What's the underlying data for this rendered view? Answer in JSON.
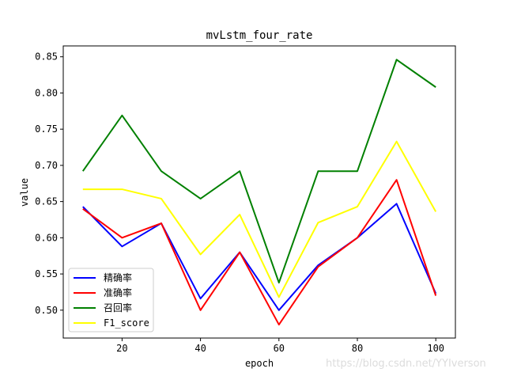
{
  "watermark": "https://blog.csdn.net/YYIverson",
  "chart_data": {
    "type": "line",
    "title": "mvLstm_four_rate",
    "xlabel": "epoch",
    "ylabel": "value",
    "x": [
      10,
      20,
      30,
      40,
      50,
      60,
      70,
      80,
      90,
      100
    ],
    "xlim": [
      5,
      105
    ],
    "ylim": [
      0.4615,
      0.865
    ],
    "xticks": [
      20,
      40,
      60,
      80,
      100
    ],
    "yticks": [
      0.5,
      0.55,
      0.6,
      0.65,
      0.7,
      0.75,
      0.8,
      0.85
    ],
    "ytick_labels": [
      "0.50",
      "0.55",
      "0.60",
      "0.65",
      "0.70",
      "0.75",
      "0.80",
      "0.85"
    ],
    "grid": false,
    "legend_position": "lower-left",
    "series": [
      {
        "name": "精确率",
        "color": "#0000ff",
        "values": [
          0.643,
          0.588,
          0.62,
          0.516,
          0.58,
          0.5,
          0.562,
          0.6,
          0.647,
          0.523
        ]
      },
      {
        "name": "准确率",
        "color": "#ff0000",
        "values": [
          0.64,
          0.6,
          0.62,
          0.5,
          0.58,
          0.48,
          0.56,
          0.6,
          0.68,
          0.52
        ]
      },
      {
        "name": "召回率",
        "color": "#008000",
        "values": [
          0.692,
          0.769,
          0.692,
          0.654,
          0.692,
          0.538,
          0.692,
          0.692,
          0.846,
          0.808
        ]
      },
      {
        "name": "F1_score",
        "color": "#ffff00",
        "values": [
          0.667,
          0.667,
          0.654,
          0.577,
          0.632,
          0.518,
          0.621,
          0.643,
          0.733,
          0.636
        ]
      }
    ]
  }
}
